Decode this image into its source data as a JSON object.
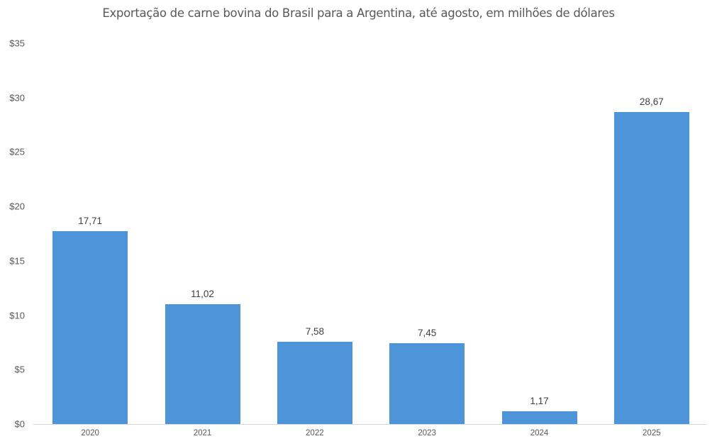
{
  "chart_data": {
    "type": "bar",
    "title": "Exportação de carne bovina do Brasil para a Argentina, até agosto, em milhões de dólares",
    "xlabel": "",
    "ylabel": "",
    "categories": [
      "2020",
      "2021",
      "2022",
      "2023",
      "2024",
      "2025"
    ],
    "values": [
      17.71,
      11.02,
      7.58,
      7.45,
      1.17,
      28.67
    ],
    "value_labels": [
      "17,71",
      "11,02",
      "7,58",
      "7,45",
      "1,17",
      "28,67"
    ],
    "ylim": [
      0,
      35
    ],
    "yticks": [
      0,
      5,
      10,
      15,
      20,
      25,
      30,
      35
    ],
    "ytick_labels": [
      "$0",
      "$5",
      "$10",
      "$15",
      "$20",
      "$25",
      "$30",
      "$35"
    ],
    "grid": false,
    "legend": "none",
    "bar_color": "#4e94d8"
  }
}
